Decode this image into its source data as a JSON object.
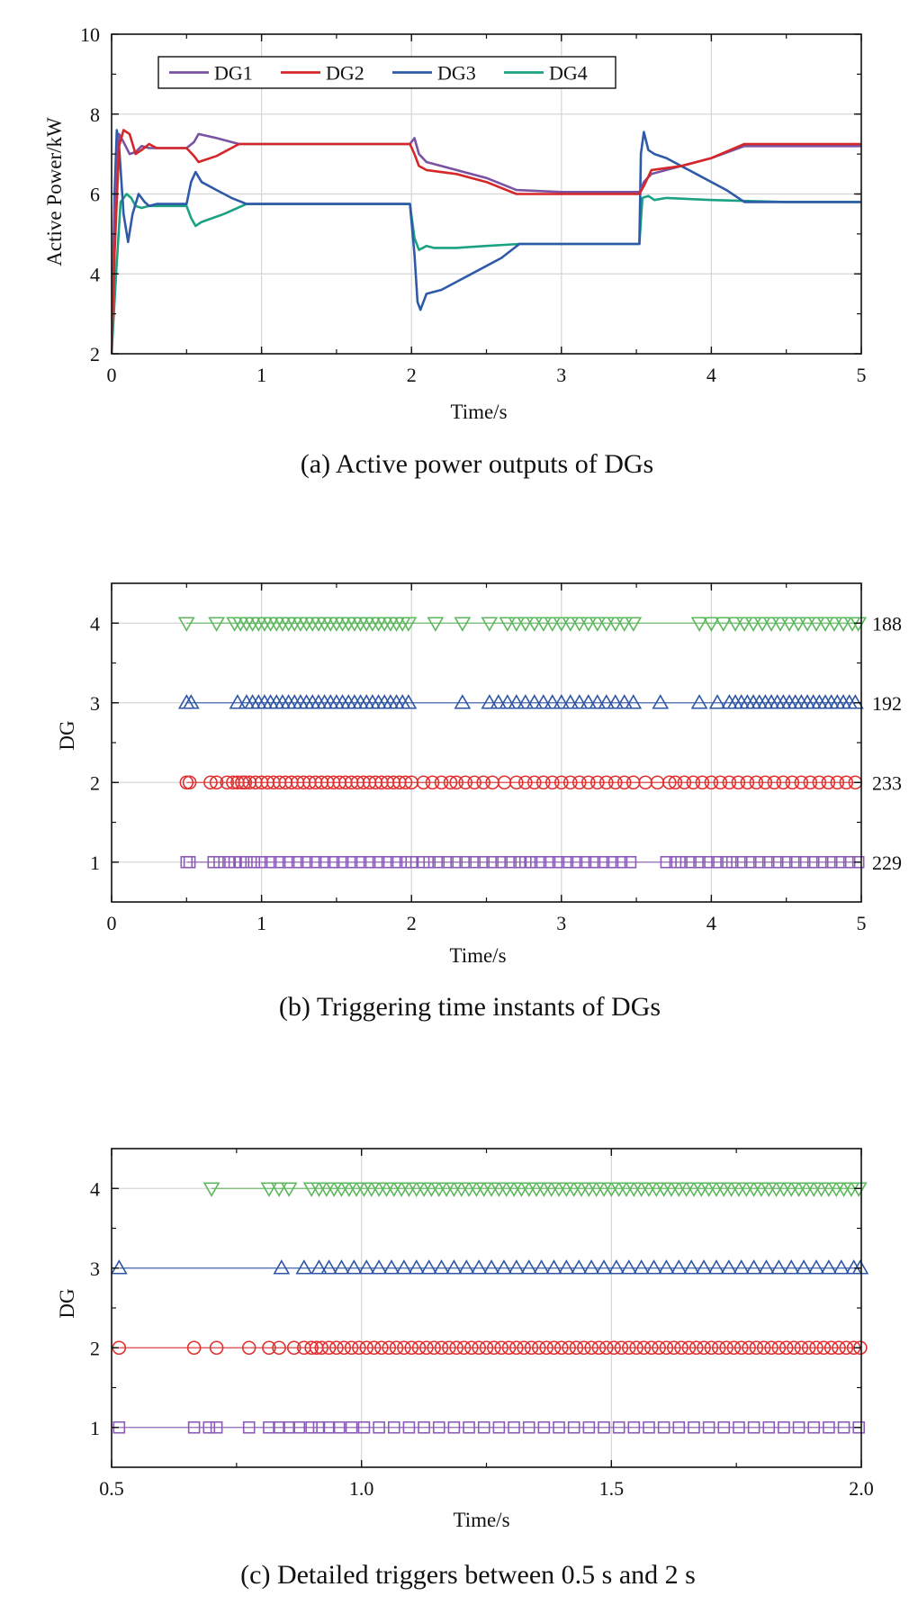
{
  "chart_data": [
    {
      "type": "line",
      "caption": "(a) Active power outputs of DGs",
      "xlabel": "Time/s",
      "ylabel": "Active Power/kW",
      "xlim": [
        0,
        5
      ],
      "ylim": [
        2,
        10
      ],
      "xticks": [
        "0",
        "1",
        "2",
        "3",
        "4",
        "5"
      ],
      "yticks": [
        "2",
        "4",
        "6",
        "8",
        "10"
      ],
      "grid": true,
      "legend": "top-left",
      "series": [
        {
          "name": "DG1",
          "color": "#7B52A3",
          "x": [
            0,
            0.02,
            0.05,
            0.08,
            0.12,
            0.16,
            0.2,
            0.25,
            0.3,
            0.4,
            0.5,
            0.55,
            0.58,
            0.7,
            0.85,
            1.0,
            1.5,
            1.99,
            2.02,
            2.05,
            2.1,
            2.3,
            2.5,
            2.7,
            3.0,
            3.3,
            3.52,
            3.55,
            3.6,
            3.8,
            4.0,
            4.22,
            4.5,
            5.0
          ],
          "y": [
            2.0,
            5.5,
            7.5,
            7.3,
            7.0,
            7.05,
            7.2,
            7.15,
            7.15,
            7.15,
            7.15,
            7.3,
            7.5,
            7.4,
            7.25,
            7.25,
            7.25,
            7.25,
            7.4,
            7.0,
            6.8,
            6.6,
            6.4,
            6.1,
            6.05,
            6.05,
            6.05,
            6.3,
            6.5,
            6.7,
            6.9,
            7.2,
            7.2,
            7.2
          ]
        },
        {
          "name": "DG2",
          "color": "#D62728",
          "x": [
            0,
            0.02,
            0.05,
            0.08,
            0.12,
            0.16,
            0.2,
            0.25,
            0.3,
            0.4,
            0.5,
            0.55,
            0.58,
            0.7,
            0.85,
            1.0,
            1.5,
            1.99,
            2.02,
            2.05,
            2.1,
            2.3,
            2.5,
            2.7,
            3.0,
            3.3,
            3.52,
            3.55,
            3.6,
            3.8,
            4.0,
            4.22,
            4.5,
            5.0
          ],
          "y": [
            2.0,
            4.5,
            7.2,
            7.6,
            7.5,
            7.0,
            7.1,
            7.25,
            7.15,
            7.15,
            7.15,
            6.95,
            6.8,
            6.95,
            7.25,
            7.25,
            7.25,
            7.25,
            7.0,
            6.7,
            6.6,
            6.5,
            6.3,
            6.0,
            6.0,
            6.0,
            6.0,
            6.2,
            6.6,
            6.7,
            6.9,
            7.25,
            7.25,
            7.25
          ]
        },
        {
          "name": "DG3",
          "color": "#2E5AA8",
          "x": [
            0,
            0.02,
            0.035,
            0.05,
            0.08,
            0.11,
            0.14,
            0.18,
            0.22,
            0.25,
            0.3,
            0.4,
            0.5,
            0.53,
            0.56,
            0.6,
            0.7,
            0.8,
            0.9,
            1.0,
            1.5,
            1.99,
            2.02,
            2.04,
            2.06,
            2.08,
            2.1,
            2.2,
            2.4,
            2.6,
            2.72,
            3.0,
            3.3,
            3.52,
            3.53,
            3.55,
            3.58,
            3.62,
            3.7,
            3.9,
            4.1,
            4.22,
            4.5,
            5.0
          ],
          "y": [
            2.0,
            6.0,
            7.6,
            7.2,
            5.5,
            4.8,
            5.5,
            6.0,
            5.8,
            5.7,
            5.75,
            5.75,
            5.75,
            6.3,
            6.55,
            6.3,
            6.1,
            5.9,
            5.75,
            5.75,
            5.75,
            5.75,
            4.5,
            3.3,
            3.1,
            3.3,
            3.5,
            3.6,
            4.0,
            4.4,
            4.75,
            4.75,
            4.75,
            4.75,
            7.0,
            7.55,
            7.1,
            7.0,
            6.9,
            6.5,
            6.1,
            5.8,
            5.8,
            5.8
          ]
        },
        {
          "name": "DG4",
          "color": "#1AA283",
          "x": [
            0,
            0.03,
            0.06,
            0.1,
            0.13,
            0.16,
            0.2,
            0.25,
            0.3,
            0.4,
            0.5,
            0.53,
            0.56,
            0.6,
            0.75,
            0.9,
            1.0,
            1.5,
            1.99,
            2.02,
            2.05,
            2.1,
            2.15,
            2.3,
            2.5,
            2.72,
            3.0,
            3.3,
            3.52,
            3.54,
            3.58,
            3.62,
            3.7,
            4.0,
            4.5,
            5.0
          ],
          "y": [
            2.0,
            4.0,
            5.8,
            6.0,
            5.9,
            5.7,
            5.65,
            5.7,
            5.7,
            5.7,
            5.7,
            5.4,
            5.2,
            5.3,
            5.5,
            5.75,
            5.75,
            5.75,
            5.75,
            4.9,
            4.6,
            4.7,
            4.65,
            4.65,
            4.7,
            4.75,
            4.75,
            4.75,
            4.75,
            5.9,
            5.95,
            5.85,
            5.9,
            5.85,
            5.8,
            5.8
          ]
        }
      ]
    },
    {
      "type": "scatter",
      "caption": "(b) Triggering time instants of DGs",
      "xlabel": "Time/s",
      "ylabel": "DG",
      "xlim": [
        0,
        5
      ],
      "ylim": [
        0.5,
        4.5
      ],
      "xticks": [
        "0",
        "1",
        "2",
        "3",
        "4",
        "5"
      ],
      "yticks": [
        "1",
        "2",
        "3",
        "4"
      ],
      "grid": true,
      "series": [
        {
          "name": "DG1",
          "marker": "square",
          "color": "#8A5BB4",
          "count": "229",
          "x": [
            0.5,
            0.52,
            0.68,
            0.72,
            0.78,
            0.82,
            0.86,
            0.9,
            0.95,
            1.0,
            1.06,
            1.12,
            1.18,
            1.24,
            1.3,
            1.36,
            1.42,
            1.48,
            1.54,
            1.6,
            1.66,
            1.72,
            1.78,
            1.84,
            1.9,
            1.96,
            2.0,
            2.08,
            2.12,
            2.18,
            2.24,
            2.3,
            2.36,
            2.42,
            2.48,
            2.54,
            2.6,
            2.66,
            2.72,
            2.76,
            2.8,
            2.86,
            2.92,
            2.98,
            3.04,
            3.1,
            3.16,
            3.22,
            3.28,
            3.34,
            3.4,
            3.46,
            3.7,
            3.76,
            3.8,
            3.86,
            3.92,
            3.98,
            4.04,
            4.1,
            4.14,
            4.2,
            4.26,
            4.32,
            4.38,
            4.44,
            4.5,
            4.56,
            4.62,
            4.68,
            4.74,
            4.8,
            4.86,
            4.92,
            4.98
          ]
        },
        {
          "name": "DG2",
          "marker": "circle",
          "color": "#E03030",
          "count": "233",
          "x": [
            0.5,
            0.52,
            0.66,
            0.7,
            0.77,
            0.81,
            0.84,
            0.87,
            0.89,
            0.92,
            0.96,
            1.0,
            1.04,
            1.08,
            1.12,
            1.16,
            1.2,
            1.24,
            1.28,
            1.32,
            1.36,
            1.4,
            1.44,
            1.48,
            1.52,
            1.56,
            1.6,
            1.64,
            1.68,
            1.72,
            1.76,
            1.8,
            1.84,
            1.88,
            1.92,
            1.96,
            2.0,
            2.08,
            2.14,
            2.2,
            2.26,
            2.3,
            2.36,
            2.42,
            2.48,
            2.54,
            2.62,
            2.7,
            2.76,
            2.82,
            2.88,
            2.94,
            3.0,
            3.06,
            3.12,
            3.18,
            3.24,
            3.3,
            3.36,
            3.42,
            3.48,
            3.56,
            3.64,
            3.72,
            3.76,
            3.82,
            3.88,
            3.94,
            4.0,
            4.06,
            4.12,
            4.18,
            4.24,
            4.3,
            4.36,
            4.42,
            4.48,
            4.54,
            4.6,
            4.66,
            4.72,
            4.78,
            4.84,
            4.9,
            4.96
          ]
        },
        {
          "name": "DG3",
          "marker": "triangle-up",
          "color": "#2E55A5",
          "count": "192",
          "x": [
            0.5,
            0.53,
            0.84,
            0.9,
            0.94,
            0.98,
            1.02,
            1.06,
            1.1,
            1.14,
            1.18,
            1.22,
            1.26,
            1.3,
            1.34,
            1.38,
            1.42,
            1.46,
            1.5,
            1.54,
            1.58,
            1.62,
            1.66,
            1.7,
            1.74,
            1.78,
            1.82,
            1.86,
            1.9,
            1.94,
            1.98,
            2.34,
            2.52,
            2.58,
            2.64,
            2.7,
            2.76,
            2.82,
            2.88,
            2.94,
            3.0,
            3.06,
            3.12,
            3.18,
            3.24,
            3.3,
            3.36,
            3.42,
            3.48,
            3.66,
            3.92,
            4.04,
            4.12,
            4.16,
            4.2,
            4.24,
            4.28,
            4.32,
            4.36,
            4.4,
            4.44,
            4.48,
            4.52,
            4.56,
            4.6,
            4.64,
            4.68,
            4.72,
            4.76,
            4.8,
            4.84,
            4.88,
            4.92,
            4.96
          ]
        },
        {
          "name": "DG4",
          "marker": "triangle-down",
          "color": "#5CB85C",
          "count": "188",
          "x": [
            0.5,
            0.7,
            0.82,
            0.86,
            0.9,
            0.94,
            0.98,
            1.02,
            1.06,
            1.1,
            1.14,
            1.18,
            1.22,
            1.26,
            1.3,
            1.34,
            1.38,
            1.42,
            1.46,
            1.5,
            1.54,
            1.58,
            1.62,
            1.66,
            1.7,
            1.74,
            1.78,
            1.82,
            1.86,
            1.9,
            1.94,
            1.98,
            2.16,
            2.34,
            2.52,
            2.64,
            2.7,
            2.76,
            2.82,
            2.88,
            2.94,
            3.0,
            3.06,
            3.12,
            3.18,
            3.24,
            3.3,
            3.36,
            3.42,
            3.48,
            3.92,
            4.0,
            4.08,
            4.16,
            4.22,
            4.28,
            4.34,
            4.4,
            4.46,
            4.52,
            4.58,
            4.64,
            4.7,
            4.76,
            4.82,
            4.88,
            4.94,
            4.98
          ]
        }
      ]
    },
    {
      "type": "scatter",
      "caption": "(c) Detailed triggers between 0.5 s and 2 s",
      "xlabel": "Time/s",
      "ylabel": "DG",
      "xlim": [
        0.5,
        2.0
      ],
      "ylim": [
        0.5,
        4.5
      ],
      "xticks": [
        "0.5",
        "1.0",
        "1.5",
        "2.0"
      ],
      "yticks": [
        "1",
        "2",
        "3",
        "4"
      ],
      "grid": true,
      "series": [
        {
          "name": "DG1",
          "marker": "square",
          "color": "#8A5BB4",
          "x": [
            0.515,
            0.665,
            0.695,
            0.71,
            0.775,
            0.815,
            0.835,
            0.855,
            0.875,
            0.9,
            0.915,
            0.935,
            0.955,
            0.98,
            1.005,
            1.035,
            1.065,
            1.095,
            1.125,
            1.155,
            1.185,
            1.215,
            1.245,
            1.275,
            1.305,
            1.335,
            1.365,
            1.395,
            1.425,
            1.455,
            1.485,
            1.515,
            1.545,
            1.575,
            1.605,
            1.635,
            1.665,
            1.695,
            1.725,
            1.755,
            1.785,
            1.815,
            1.845,
            1.875,
            1.905,
            1.935,
            1.965,
            1.995
          ]
        },
        {
          "name": "DG2",
          "marker": "circle",
          "color": "#E03030",
          "x": [
            0.515,
            0.665,
            0.71,
            0.775,
            0.815,
            0.835,
            0.865,
            0.885,
            0.9,
            0.91,
            0.92,
            0.935,
            0.95,
            0.965,
            0.98,
            0.995,
            1.01,
            1.025,
            1.04,
            1.055,
            1.07,
            1.085,
            1.1,
            1.115,
            1.13,
            1.145,
            1.16,
            1.175,
            1.19,
            1.205,
            1.22,
            1.235,
            1.25,
            1.265,
            1.28,
            1.295,
            1.31,
            1.325,
            1.34,
            1.355,
            1.37,
            1.385,
            1.4,
            1.415,
            1.43,
            1.445,
            1.46,
            1.475,
            1.49,
            1.505,
            1.52,
            1.535,
            1.55,
            1.565,
            1.58,
            1.595,
            1.61,
            1.625,
            1.64,
            1.655,
            1.67,
            1.685,
            1.7,
            1.715,
            1.73,
            1.745,
            1.76,
            1.775,
            1.79,
            1.805,
            1.82,
            1.835,
            1.85,
            1.865,
            1.88,
            1.895,
            1.91,
            1.925,
            1.94,
            1.955,
            1.97,
            1.985,
            1.998
          ]
        },
        {
          "name": "DG3",
          "marker": "triangle-up",
          "color": "#2E55A5",
          "x": [
            0.515,
            0.84,
            0.885,
            0.915,
            0.935,
            0.96,
            0.985,
            1.01,
            1.035,
            1.06,
            1.085,
            1.11,
            1.135,
            1.16,
            1.185,
            1.21,
            1.235,
            1.26,
            1.285,
            1.31,
            1.335,
            1.36,
            1.385,
            1.41,
            1.435,
            1.46,
            1.485,
            1.51,
            1.535,
            1.56,
            1.585,
            1.61,
            1.635,
            1.66,
            1.685,
            1.71,
            1.735,
            1.76,
            1.785,
            1.81,
            1.835,
            1.86,
            1.885,
            1.91,
            1.935,
            1.96,
            1.985,
            1.998
          ]
        },
        {
          "name": "DG4",
          "marker": "triangle-down",
          "color": "#5CB85C",
          "x": [
            0.7,
            0.815,
            0.835,
            0.855,
            0.9,
            0.915,
            0.93,
            0.945,
            0.96,
            0.975,
            0.99,
            1.005,
            1.02,
            1.035,
            1.05,
            1.065,
            1.08,
            1.095,
            1.11,
            1.125,
            1.14,
            1.155,
            1.17,
            1.185,
            1.2,
            1.215,
            1.23,
            1.245,
            1.26,
            1.275,
            1.29,
            1.305,
            1.32,
            1.335,
            1.35,
            1.365,
            1.38,
            1.395,
            1.41,
            1.425,
            1.44,
            1.455,
            1.47,
            1.485,
            1.5,
            1.515,
            1.53,
            1.545,
            1.56,
            1.575,
            1.59,
            1.605,
            1.62,
            1.635,
            1.65,
            1.665,
            1.68,
            1.695,
            1.71,
            1.725,
            1.74,
            1.755,
            1.77,
            1.785,
            1.8,
            1.815,
            1.83,
            1.845,
            1.86,
            1.875,
            1.89,
            1.905,
            1.92,
            1.935,
            1.95,
            1.965,
            1.98,
            1.995
          ]
        }
      ]
    }
  ]
}
